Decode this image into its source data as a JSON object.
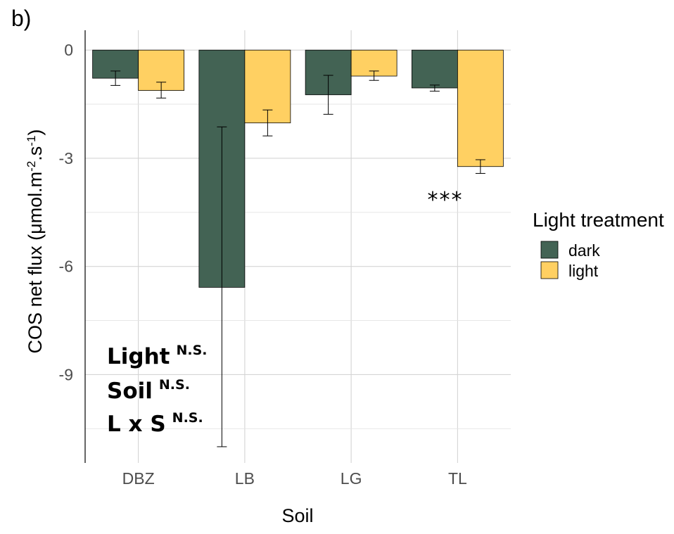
{
  "panel_label": "b)",
  "chart_data": {
    "type": "bar",
    "title": "",
    "xlabel": "Soil",
    "ylabel_parts": [
      "COS net flux (μmol.m",
      "-2",
      ".s",
      "-1",
      ")"
    ],
    "categories": [
      "DBZ",
      "LB",
      "LG",
      "TL"
    ],
    "ylim": [
      -11.45,
      0.55
    ],
    "yticks": [
      0,
      -3,
      -6,
      -9
    ],
    "ytick_labels": [
      "0",
      "-3",
      "-6",
      "-9"
    ],
    "grid": true,
    "legend": {
      "title": "Light treatment",
      "position": "right",
      "entries": [
        "dark",
        "light"
      ]
    },
    "series": [
      {
        "name": "dark",
        "color": "#436354",
        "values": [
          -0.78,
          -6.58,
          -1.24,
          -1.05
        ],
        "error_low": [
          -0.98,
          -11.0,
          -1.78,
          -1.14
        ],
        "error_high": [
          -0.58,
          -2.13,
          -0.7,
          -0.97
        ]
      },
      {
        "name": "light",
        "color": "#ffd062",
        "values": [
          -1.12,
          -2.02,
          -0.72,
          -3.23
        ],
        "error_low": [
          -1.33,
          -2.38,
          -0.84,
          -3.42
        ],
        "error_high": [
          -0.89,
          -1.66,
          -0.58,
          -3.04
        ]
      }
    ],
    "annotations": {
      "significance": {
        "text": "***",
        "category": "TL"
      },
      "stats": [
        {
          "label": "Light",
          "sup": "N.S."
        },
        {
          "label": "Soil",
          "sup": "N.S."
        },
        {
          "label": "L x S",
          "sup": "N.S."
        }
      ]
    }
  }
}
